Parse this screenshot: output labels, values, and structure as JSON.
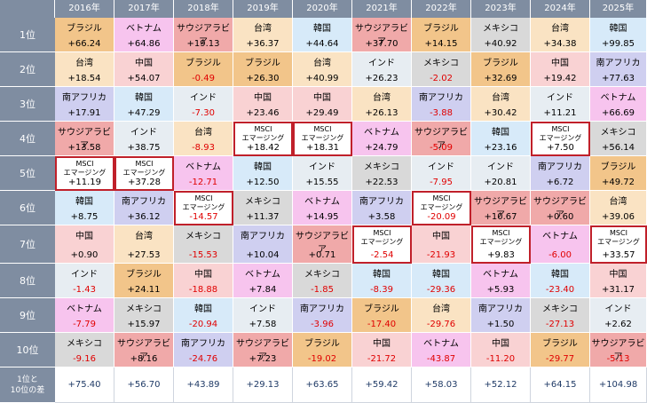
{
  "years": [
    "2016年",
    "2017年",
    "2018年",
    "2019年",
    "2020年",
    "2021年",
    "2022年",
    "2023年",
    "2024年",
    "2025年"
  ],
  "rank_labels": [
    "1位",
    "2位",
    "3位",
    "4位",
    "5位",
    "6位",
    "7位",
    "8位",
    "9位",
    "10位"
  ],
  "diff_label": [
    "1位と",
    "10位の差"
  ],
  "msci_label": [
    "MSCI",
    "エマージング"
  ],
  "colors": {
    "header": "#7f8da1",
    "ブラジル": "#f2c58a",
    "ベトナム": "#f7c4ee",
    "サウジアラビア": "#f0a9a9",
    "台湾": "#fae3c3",
    "韓国": "#d7eaf9",
    "インド": "#e7edf2",
    "メキシコ": "#d9d9d9",
    "中国": "#f9d2d3",
    "南アフリカ": "#cfcff0",
    "MSCI": "#ffffff"
  },
  "columns": [
    [
      [
        "ブラジル",
        "+66.24"
      ],
      [
        "台湾",
        "+18.54"
      ],
      [
        "南アフリカ",
        "+17.91"
      ],
      [
        "サウジアラビア",
        "+13.58"
      ],
      [
        "MSCI",
        "+11.19"
      ],
      [
        "韓国",
        "+8.75"
      ],
      [
        "中国",
        "+0.90"
      ],
      [
        "インド",
        "-1.43"
      ],
      [
        "ベトナム",
        "-7.79"
      ],
      [
        "メキシコ",
        "-9.16"
      ]
    ],
    [
      [
        "ベトナム",
        "+64.86"
      ],
      [
        "中国",
        "+54.07"
      ],
      [
        "韓国",
        "+47.29"
      ],
      [
        "インド",
        "+38.75"
      ],
      [
        "MSCI",
        "+37.28"
      ],
      [
        "南アフリカ",
        "+36.12"
      ],
      [
        "台湾",
        "+27.53"
      ],
      [
        "ブラジル",
        "+24.11"
      ],
      [
        "メキシコ",
        "+15.97"
      ],
      [
        "サウジアラビア",
        "+8.16"
      ]
    ],
    [
      [
        "サウジアラビア",
        "+19.13"
      ],
      [
        "ブラジル",
        "-0.49"
      ],
      [
        "インド",
        "-7.30"
      ],
      [
        "台湾",
        "-8.93"
      ],
      [
        "ベトナム",
        "-12.71"
      ],
      [
        "MSCI",
        "-14.57"
      ],
      [
        "メキシコ",
        "-15.53"
      ],
      [
        "中国",
        "-18.88"
      ],
      [
        "韓国",
        "-20.94"
      ],
      [
        "南アフリカ",
        "-24.76"
      ]
    ],
    [
      [
        "台湾",
        "+36.37"
      ],
      [
        "ブラジル",
        "+26.30"
      ],
      [
        "中国",
        "+23.46"
      ],
      [
        "MSCI",
        "+18.42"
      ],
      [
        "韓国",
        "+12.50"
      ],
      [
        "メキシコ",
        "+11.37"
      ],
      [
        "南アフリカ",
        "+10.04"
      ],
      [
        "ベトナム",
        "+7.84"
      ],
      [
        "インド",
        "+7.58"
      ],
      [
        "サウジアラビア",
        "+7.23"
      ]
    ],
    [
      [
        "韓国",
        "+44.64"
      ],
      [
        "台湾",
        "+40.99"
      ],
      [
        "中国",
        "+29.49"
      ],
      [
        "MSCI",
        "+18.31"
      ],
      [
        "インド",
        "+15.55"
      ],
      [
        "ベトナム",
        "+14.95"
      ],
      [
        "サウジアラビア",
        "+0.71"
      ],
      [
        "メキシコ",
        "-1.85"
      ],
      [
        "南アフリカ",
        "-3.96"
      ],
      [
        "ブラジル",
        "-19.02"
      ]
    ],
    [
      [
        "サウジアラビア",
        "+37.70"
      ],
      [
        "インド",
        "+26.23"
      ],
      [
        "台湾",
        "+26.13"
      ],
      [
        "ベトナム",
        "+24.79"
      ],
      [
        "メキシコ",
        "+22.53"
      ],
      [
        "南アフリカ",
        "+3.58"
      ],
      [
        "MSCI",
        "-2.54"
      ],
      [
        "韓国",
        "-8.39"
      ],
      [
        "ブラジル",
        "-17.40"
      ],
      [
        "中国",
        "-21.72"
      ]
    ],
    [
      [
        "ブラジル",
        "+14.15"
      ],
      [
        "メキシコ",
        "-2.02"
      ],
      [
        "南アフリカ",
        "-3.88"
      ],
      [
        "サウジアラビア",
        "-5.09"
      ],
      [
        "インド",
        "-7.95"
      ],
      [
        "MSCI",
        "-20.09"
      ],
      [
        "中国",
        "-21.93"
      ],
      [
        "韓国",
        "-29.36"
      ],
      [
        "台湾",
        "-29.76"
      ],
      [
        "ベトナム",
        "-43.87"
      ]
    ],
    [
      [
        "メキシコ",
        "+40.92"
      ],
      [
        "ブラジル",
        "+32.69"
      ],
      [
        "台湾",
        "+30.42"
      ],
      [
        "韓国",
        "+23.16"
      ],
      [
        "インド",
        "+20.81"
      ],
      [
        "サウジアラビア",
        "+10.67"
      ],
      [
        "MSCI",
        "+9.83"
      ],
      [
        "ベトナム",
        "+5.93"
      ],
      [
        "南アフリカ",
        "+1.50"
      ],
      [
        "中国",
        "-11.20"
      ]
    ],
    [
      [
        "台湾",
        "+34.38"
      ],
      [
        "中国",
        "+19.42"
      ],
      [
        "インド",
        "+11.21"
      ],
      [
        "MSCI",
        "+7.50"
      ],
      [
        "南アフリカ",
        "+6.72"
      ],
      [
        "サウジアラビア",
        "+0.60"
      ],
      [
        "ベトナム",
        "-6.00"
      ],
      [
        "韓国",
        "-23.40"
      ],
      [
        "メキシコ",
        "-27.13"
      ],
      [
        "ブラジル",
        "-29.77"
      ]
    ],
    [
      [
        "韓国",
        "+99.85"
      ],
      [
        "南アフリカ",
        "+77.63"
      ],
      [
        "ベトナム",
        "+66.69"
      ],
      [
        "メキシコ",
        "+56.14"
      ],
      [
        "ブラジル",
        "+49.72"
      ],
      [
        "台湾",
        "+39.06"
      ],
      [
        "MSCI",
        "+33.57"
      ],
      [
        "中国",
        "+31.17"
      ],
      [
        "インド",
        "+2.62"
      ],
      [
        "サウジアラビア",
        "-5.13"
      ]
    ]
  ],
  "diffs": [
    "+75.40",
    "+56.70",
    "+43.89",
    "+29.13",
    "+63.65",
    "+59.42",
    "+58.03",
    "+52.12",
    "+64.15",
    "+104.98"
  ]
}
